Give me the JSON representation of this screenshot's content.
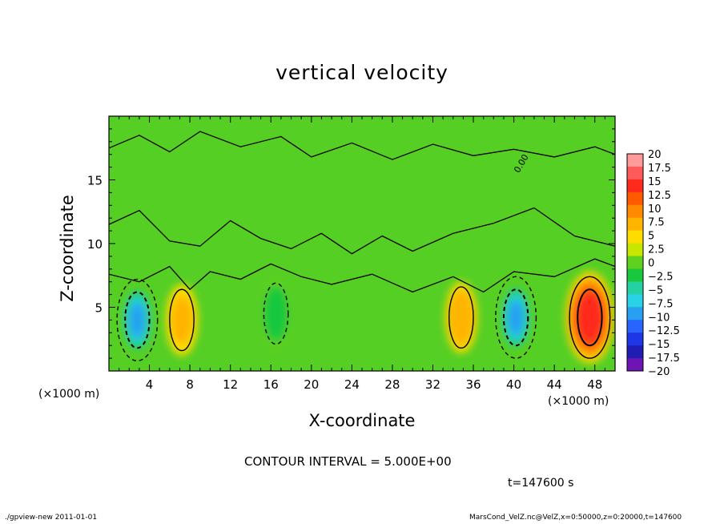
{
  "chart_data": {
    "type": "heatmap",
    "title": "vertical velocity",
    "xlabel": "X-coordinate",
    "ylabel": "Z-coordinate",
    "x_unit_label": "(×1000 m)",
    "xlim": [
      0,
      50
    ],
    "ylim": [
      0,
      20
    ],
    "x_ticks": [
      4,
      8,
      12,
      16,
      20,
      24,
      28,
      32,
      36,
      40,
      44,
      48
    ],
    "y_ticks": [
      5,
      10,
      15
    ],
    "contour_interval_text": "CONTOUR INTERVAL = 5.000E+00",
    "time_text": "t=147600 s",
    "contour_label": "0.00",
    "colorbar": {
      "levels": [
        "20",
        "17.5",
        "15",
        "12.5",
        "10",
        "7.5",
        "5",
        "2.5",
        "0",
        "−2.5",
        "−5",
        "−7.5",
        "−10",
        "−12.5",
        "−15",
        "−17.5",
        "−20"
      ],
      "colors": [
        "#ff9a9a",
        "#ff5a5a",
        "#ff2a1e",
        "#ff5a00",
        "#ff8a00",
        "#ffb400",
        "#ffdc00",
        "#c8e600",
        "#5ed21e",
        "#19c83c",
        "#23d2a0",
        "#2ad2e6",
        "#28a0f0",
        "#2864ff",
        "#1e37e6",
        "#1e1eb4",
        "#6e14b4"
      ]
    },
    "features": [
      {
        "kind": "downdraft",
        "x": 2.8,
        "z": 4.0,
        "min_value": -12
      },
      {
        "kind": "downdraft",
        "x": 16.5,
        "z": 4.5,
        "min_value": -6
      },
      {
        "kind": "downdraft",
        "x": 40.2,
        "z": 4.2,
        "min_value": -12
      },
      {
        "kind": "updraft",
        "x": 47.5,
        "z": 4.2,
        "max_value": 13
      },
      {
        "kind": "updraft",
        "x": 7.2,
        "z": 4.0,
        "max_value": 5
      },
      {
        "kind": "updraft",
        "x": 34.8,
        "z": 4.2,
        "max_value": 6
      }
    ]
  },
  "footer": {
    "left": "./gpview-new  2011-01-01",
    "right": "MarsCond_VelZ.nc@VelZ,x=0:50000,z=0:20000,t=147600"
  }
}
